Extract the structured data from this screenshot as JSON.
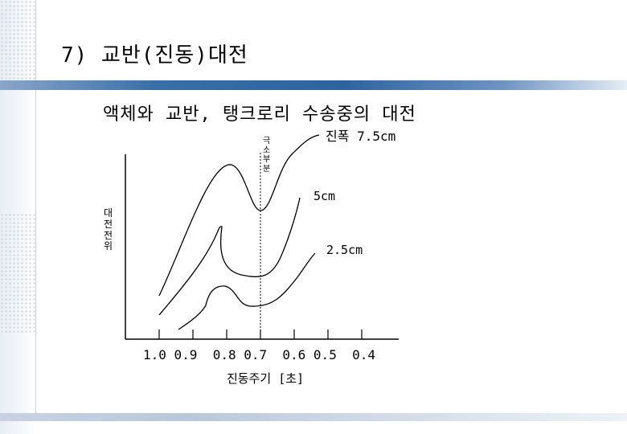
{
  "slide": {
    "title": "7) 교반(진동)대전",
    "subtitle": "액체와 교반, 탱크로리 수송중의 대전"
  },
  "diagram": {
    "y_axis_label_chars": [
      "대",
      "전",
      "전",
      "위"
    ],
    "minimum_label_chars": [
      "극",
      "소",
      "부",
      "분"
    ],
    "x_axis_label": "진동주기 [초]",
    "tick_labels_text": "1.0 0.9  0.8 0.7  0.6 0.5  0.4",
    "curves": [
      {
        "label": "진폭 7.5cm"
      },
      {
        "label": "5cm"
      },
      {
        "label": "2.5cm"
      }
    ]
  }
}
